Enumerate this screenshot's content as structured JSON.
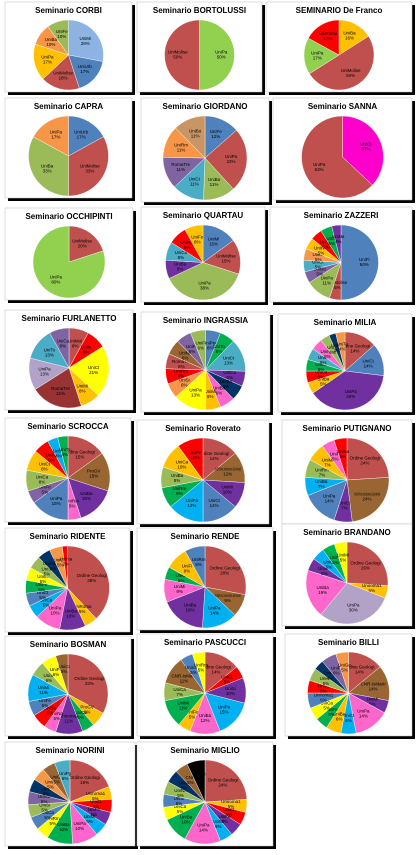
{
  "chart_data": [
    {
      "type": "pie",
      "title": "Seminario CORBI",
      "categories": [
        "UniMi",
        "UniUrb",
        "UniMolise",
        "UniPa",
        "UniBa",
        "UniFe"
      ],
      "values": [
        28,
        17,
        18,
        17,
        10,
        10
      ],
      "value_labels": [
        "28%",
        "17%",
        "18%",
        "17%",
        "10%",
        "10%"
      ],
      "colors": [
        "#8db3e2",
        "#4f81bd",
        "#c0504d",
        "#ffc000",
        "#f79646",
        "#9bbb59"
      ]
    },
    {
      "type": "pie",
      "title": "Seminario BORTOLUSSI",
      "categories": [
        "UniPa",
        "UniMolise"
      ],
      "values": [
        50,
        50
      ],
      "value_labels": [
        "50%",
        "50%"
      ],
      "colors": [
        "#92d050",
        "#c0504d"
      ]
    },
    {
      "type": "pie",
      "title": "SEMINARIO De Franco",
      "categories": [
        "UniBa",
        "UniMolise",
        "UniPa",
        "UniRoma"
      ],
      "values": [
        16,
        50,
        17,
        17
      ],
      "value_labels": [
        "16%",
        "50%",
        "17%",
        "17%"
      ],
      "colors": [
        "#ffc000",
        "#c0504d",
        "#92d050",
        "#ff0000"
      ]
    },
    {
      "type": "pie",
      "title": "Seminario CAPRA",
      "categories": [
        "UniUrb",
        "UniMolise",
        "UniBa",
        "UniPa"
      ],
      "values": [
        17,
        33,
        33,
        17
      ],
      "value_labels": [
        "17%",
        "33%",
        "33%",
        "17%"
      ],
      "colors": [
        "#4f81bd",
        "#c0504d",
        "#9bbb59",
        "#f79646"
      ]
    },
    {
      "type": "pie",
      "title": "Seminario GIORDANO",
      "categories": [
        "UniFe",
        "UniPa",
        "UniBa",
        "UniCt",
        "RomaTre",
        "UniRm",
        "UniBo"
      ],
      "values": [
        12,
        22,
        11,
        11,
        11,
        11,
        11
      ],
      "value_labels": [
        "12%",
        "22%",
        "11%",
        "11%",
        "11%",
        "11%",
        "11%"
      ],
      "colors": [
        "#4f81bd",
        "#c0504d",
        "#9bbb59",
        "#4bacc6",
        "#8064a2",
        "#f79646",
        "#c89664"
      ]
    },
    {
      "type": "pie",
      "title": "Seminario SANNA",
      "categories": [
        "UniCt",
        "UniPa"
      ],
      "values": [
        37,
        63
      ],
      "value_labels": [
        "37%",
        "63%"
      ],
      "colors": [
        "#ff00cc",
        "#c0504d"
      ]
    },
    {
      "type": "pie",
      "title": "Seminario OCCHIPINTI",
      "categories": [
        "UniMolise",
        "UniPa"
      ],
      "values": [
        20,
        80
      ],
      "value_labels": [
        "20%",
        "80%"
      ],
      "colors": [
        "#c0504d",
        "#92d050"
      ]
    },
    {
      "type": "pie",
      "title": "Seminario QUARTAU",
      "categories": [
        "UniMi",
        "UniMolise",
        "UniPa",
        "UniBa",
        "UniCa",
        "UniRm",
        "UniFe"
      ],
      "values": [
        15,
        15,
        38,
        8,
        8,
        8,
        8
      ],
      "value_labels": [
        "15%",
        "15%",
        "38%",
        "8%",
        "8%",
        "8%",
        "8%"
      ],
      "colors": [
        "#4f81bd",
        "#c0504d",
        "#9bbb59",
        "#7030a0",
        "#4bacc6",
        "#ff0000",
        "#ffc000"
      ]
    },
    {
      "type": "pie",
      "title": "Seminario ZAZZERI",
      "categories": [
        "UniFi",
        "UniMolise",
        "UniPa",
        "UniBo",
        "UniCt",
        "UniMi",
        "UniRm",
        "UniTo",
        "UniSi",
        "UniNa"
      ],
      "values": [
        50,
        5,
        11,
        5,
        5,
        5,
        5,
        5,
        5,
        4
      ],
      "value_labels": [
        "50%",
        "5%",
        "11%",
        "5%",
        "5%",
        "5%",
        "5%",
        "5%",
        "5%",
        "4%"
      ],
      "colors": [
        "#4f81bd",
        "#c0504d",
        "#9bbb59",
        "#8064a2",
        "#4bacc6",
        "#f79646",
        "#ffc000",
        "#ff0000",
        "#00b050",
        "#7030a0"
      ]
    },
    {
      "type": "pie",
      "title": "Seminario FURLANETTO",
      "categories": [
        "UniMol",
        "UniIs",
        "UniCt",
        "UniMi",
        "RomaTre",
        "UniPa",
        "UniTo",
        "UniCa"
      ],
      "values": [
        8,
        8,
        21,
        8,
        21,
        13,
        13,
        8
      ],
      "value_labels": [
        "8%",
        "8%",
        "21%",
        "8%",
        "21%",
        "13%",
        "13%",
        "8%"
      ],
      "colors": [
        "#c0504d",
        "#ff0000",
        "#ffff00",
        "#ffc000",
        "#993333",
        "#b3a2c7",
        "#4bacc6",
        "#8064a2"
      ]
    },
    {
      "type": "pie",
      "title": "Seminario INGRASSIA",
      "categories": [
        "UniPec",
        "UniTo",
        "UniCt",
        "UniCa",
        "UniBa",
        "UniBo",
        "UniMi",
        "UniPa",
        "UniSi",
        "UniRm",
        "RomaTre",
        "UniNa",
        "UniFe",
        "UniFi"
      ],
      "values": [
        6,
        6,
        13,
        6,
        6,
        6,
        6,
        13,
        6,
        6,
        6,
        6,
        6,
        6
      ],
      "value_labels": [
        "6%",
        "6%",
        "13%",
        "6%",
        "6%",
        "6%",
        "6%",
        "13%",
        "6%",
        "6%",
        "6%",
        "6%",
        "6%",
        "6%"
      ],
      "colors": [
        "#4f81bd",
        "#00b050",
        "#4bacc6",
        "#7030a0",
        "#003366",
        "#ff66cc",
        "#ffc000",
        "#ffff00",
        "#f79646",
        "#ff0000",
        "#c0504d",
        "#996633",
        "#8064a2",
        "#9bbb59"
      ]
    },
    {
      "type": "pie",
      "title": "Seminario MILIA",
      "categories": [
        "Ordine Geologi",
        "UniCt",
        "UniPa",
        "UniBa",
        "UniCa",
        "UniMi",
        "UniSi",
        "UniRm",
        "UniFi",
        "UniNa",
        "UniTo"
      ],
      "values": [
        14,
        14,
        40,
        5,
        5,
        5,
        5,
        5,
        4,
        3,
        4
      ],
      "value_labels": [
        "14%",
        "14%",
        "40%",
        "5%",
        "5%",
        "5%",
        "5%",
        "5%",
        "4%",
        "3%",
        "4%"
      ],
      "colors": [
        "#c0504d",
        "#4f81bd",
        "#7030a0",
        "#ffc000",
        "#ff0000",
        "#00b050",
        "#4bacc6",
        "#ff66cc",
        "#9bbb59",
        "#003366",
        "#f79646"
      ]
    },
    {
      "type": "pie",
      "title": "Seminario SCROCCA",
      "categories": [
        "Ordine Geologi",
        "ProGV",
        "UniBa",
        "UniRm",
        "UniPa",
        "UniFe",
        "UniCa",
        "UniCt",
        "UniMi",
        "UniTs",
        "UniTo"
      ],
      "values": [
        15,
        15,
        15,
        5,
        15,
        5,
        8,
        8,
        6,
        4,
        4
      ],
      "value_labels": [
        "15%",
        "15%",
        "15%",
        "5%",
        "15%",
        "5%",
        "8%",
        "8%",
        "6%",
        "4%",
        "4%"
      ],
      "colors": [
        "#c0504d",
        "#996633",
        "#7030a0",
        "#ff66cc",
        "#4f81bd",
        "#8064a2",
        "#9bbb59",
        "#ffc000",
        "#ff0000",
        "#00b0f0",
        "#00b050"
      ]
    },
    {
      "type": "pie",
      "title": "Seminario Roverato",
      "categories": [
        "Ordine Geologi",
        "Altro (Enti Ricerca, Università straniere, Guide Ambientali)",
        "UniMi",
        "UniCt",
        "UniPa",
        "UniRm",
        "UniBa",
        "UniCa",
        "UniFe"
      ],
      "values": [
        14,
        12,
        10,
        14,
        14,
        8,
        8,
        10,
        10
      ],
      "value_labels": [
        "14%",
        "12%",
        "10%",
        "14%",
        "14%",
        "8%",
        "8%",
        "10%",
        "10%"
      ],
      "colors": [
        "#c0504d",
        "#996633",
        "#7030a0",
        "#4f81bd",
        "#00b0f0",
        "#00b050",
        "#9bbb59",
        "#ffc000",
        "#ff0000"
      ]
    },
    {
      "type": "pie",
      "title": "Seminario PUTIGNANO",
      "categories": [
        "Ordine Geologi",
        "Altro (Enti Ricerca, Università straniere, Guide Ambientali)",
        "UniCt",
        "UniPa",
        "UniBa",
        "UniRm",
        "UniMi",
        "UniFi",
        "UniNa"
      ],
      "values": [
        24,
        24,
        7,
        14,
        7,
        7,
        7,
        5,
        5
      ],
      "value_labels": [
        "24%",
        "24%",
        "7%",
        "14%",
        "7%",
        "7%",
        "7%",
        "5%",
        "5%"
      ],
      "colors": [
        "#c0504d",
        "#996633",
        "#7030a0",
        "#4f81bd",
        "#00b0f0",
        "#9bbb59",
        "#ffc000",
        "#ff66cc",
        "#ff0000"
      ]
    },
    {
      "type": "pie",
      "title": "Seminario RIDENTE",
      "categories": [
        "Ordine Geologi",
        "UniRoma",
        "UniBa",
        "UniPa",
        "UniCa",
        "UniCt",
        "UniFe",
        "UniMi",
        "UniSi",
        "Uniroma1",
        "UniCal",
        "UniNa"
      ],
      "values": [
        38,
        5,
        10,
        10,
        5,
        5,
        5,
        5,
        5,
        5,
        5,
        2
      ],
      "value_labels": [
        "38%",
        "5%",
        "10%",
        "10%",
        "5%",
        "5%",
        "5%",
        "5%",
        "5%",
        "5%",
        "5%",
        "2%"
      ],
      "colors": [
        "#c0504d",
        "#ffc000",
        "#7030a0",
        "#ff66cc",
        "#00b0f0",
        "#4f81bd",
        "#00b050",
        "#ffff00",
        "#9bbb59",
        "#003366",
        "#f79646",
        "#ff0000"
      ]
    },
    {
      "type": "pie",
      "title": "Seminario RENDE",
      "categories": [
        "Ordine Geologi",
        "Altro (Enti Ricerca, Università straniere, Guide Ambientali)",
        "UniPa",
        "UniBa",
        "UniMi",
        "UniCt",
        "UniFi",
        "UniRm"
      ],
      "values": [
        28,
        9,
        14,
        18,
        9,
        5,
        9,
        8
      ],
      "value_labels": [
        "28%",
        "9%",
        "14%",
        "18%",
        "9%",
        "5%",
        "9%",
        "8%"
      ],
      "colors": [
        "#c0504d",
        "#996633",
        "#00b0f0",
        "#7030a0",
        "#ff66cc",
        "#00b050",
        "#ffc000",
        "#4f81bd"
      ]
    },
    {
      "type": "pie",
      "title": "Seminario BRANDANO",
      "categories": [
        "Ordine Geologi",
        "Uniroma1",
        "UniPa",
        "UniBa",
        "UniCa",
        "UniCt",
        "UniFe",
        "UniMi"
      ],
      "values": [
        26,
        5,
        30,
        19,
        5,
        5,
        5,
        5
      ],
      "value_labels": [
        "26%",
        "5%",
        "30%",
        "19%",
        "5%",
        "5%",
        "5%",
        "5%"
      ],
      "colors": [
        "#c0504d",
        "#ffc000",
        "#b3a2c7",
        "#ff66cc",
        "#7030a0",
        "#00b0f0",
        "#00b050",
        "#ffff00"
      ]
    },
    {
      "type": "pie",
      "title": "Seminario BOSMAN",
      "categories": [
        "Ordine Geologi",
        "ProGV",
        "UniCa",
        "Uniroma1",
        "UniNa",
        "UniBa",
        "UniFe",
        "UniMi",
        "UniSi",
        "UniPa",
        "UniCt"
      ],
      "values": [
        33,
        6,
        5,
        11,
        5,
        6,
        6,
        11,
        6,
        6,
        5
      ],
      "value_labels": [
        "33%",
        "6%",
        "5%",
        "11%",
        "5%",
        "6%",
        "6%",
        "11%",
        "6%",
        "6%",
        "5%"
      ],
      "colors": [
        "#c0504d",
        "#ffc000",
        "#00b050",
        "#7030a0",
        "#ff66cc",
        "#ff0000",
        "#4f81bd",
        "#00b0f0",
        "#9bbb59",
        "#ffff00",
        "#996633"
      ]
    },
    {
      "type": "pie",
      "title": "Seminario PASCUCCI",
      "categories": [
        "Ordine Geologi",
        "UniCt",
        "UniSi",
        "UniPa",
        "UniBa",
        "UniFe",
        "UniMi",
        "UniCa",
        "CNR-IsMarII",
        "Uniroma",
        "UniRm"
      ],
      "values": [
        14,
        5,
        10,
        15,
        12,
        5,
        11,
        7,
        11,
        5,
        5
      ],
      "value_labels": [
        "14%",
        "5%",
        "10%",
        "15%",
        "12%",
        "5%",
        "11%",
        "7%",
        "11%",
        "5%",
        "5%"
      ],
      "colors": [
        "#c0504d",
        "#ff0000",
        "#7030a0",
        "#00b0f0",
        "#ff66cc",
        "#ffc000",
        "#00b050",
        "#9bbb59",
        "#996633",
        "#4f81bd",
        "#ffff00"
      ]
    },
    {
      "type": "pie",
      "title": "Seminario BILLI",
      "categories": [
        "Ordine Geologi",
        "CNR-IsMarII",
        "UniMi",
        "UniPa",
        "UniCt",
        "UniBa",
        "UniFe",
        "UniCa",
        "Uniroma1",
        "UniSi",
        "UniNa",
        "UniTo",
        "UniFi",
        "UniGe"
      ],
      "values": [
        14,
        14,
        5,
        14,
        6,
        6,
        5,
        5,
        6,
        5,
        5,
        4,
        6,
        5
      ],
      "value_labels": [
        "14%",
        "14%",
        "5%",
        "14%",
        "6%",
        "6%",
        "5%",
        "5%",
        "6%",
        "5%",
        "5%",
        "4%",
        "6%",
        "5%"
      ],
      "colors": [
        "#c0504d",
        "#996633",
        "#7030a0",
        "#ff66cc",
        "#00b0f0",
        "#ffc000",
        "#00b050",
        "#ffff00",
        "#4f81bd",
        "#ff0000",
        "#9bbb59",
        "#003366",
        "#8064a2",
        "#f79646"
      ]
    },
    {
      "type": "pie",
      "title": "Seminario NORINI",
      "categories": [
        "Ordine Geologi",
        "Uniroma1",
        "UniCt",
        "UniFe",
        "UniMi",
        "UniPa",
        "UniBa",
        "UniRm",
        "UniCa",
        "UniSi",
        "UniNa",
        "UniTo",
        "UniFi",
        "UniGe",
        "UniPg"
      ],
      "values": [
        19,
        5,
        5,
        5,
        5,
        10,
        10,
        5,
        5,
        5,
        5,
        5,
        5,
        5,
        6
      ],
      "value_labels": [
        "19%",
        "5%",
        "5%",
        "5%",
        "5%",
        "10%",
        "10%",
        "5%",
        "5%",
        "5%",
        "5%",
        "5%",
        "5%",
        "5%",
        "6%"
      ],
      "colors": [
        "#c0504d",
        "#ffc000",
        "#ff0000",
        "#7030a0",
        "#00b0f0",
        "#ff66cc",
        "#00b050",
        "#ffff00",
        "#4f81bd",
        "#9bbb59",
        "#8064a2",
        "#003366",
        "#f79646",
        "#996633",
        "#4bacc6"
      ]
    },
    {
      "type": "pie",
      "title": "Seminario MIGLIO",
      "categories": [
        "Ordine Geologi",
        "Uniroma1",
        "UniCt",
        "UniFe",
        "UniMi",
        "UniPa",
        "UniBa",
        "UniCa",
        "UniSi",
        "UniNa",
        "UniTo",
        "CNR",
        "UniGe"
      ],
      "values": [
        24,
        5,
        5,
        5,
        5,
        14,
        10,
        5,
        5,
        5,
        5,
        5,
        7
      ],
      "value_labels": [
        "24%",
        "5%",
        "5%",
        "5%",
        "5%",
        "14%",
        "10%",
        "5%",
        "5%",
        "5%",
        "5%",
        "5%",
        "7%"
      ],
      "colors": [
        "#c0504d",
        "#ffc000",
        "#ff0000",
        "#7030a0",
        "#00b0f0",
        "#ff66cc",
        "#00b050",
        "#ffff00",
        "#4f81bd",
        "#9bbb59",
        "#003366",
        "#996633",
        "#000000"
      ]
    }
  ]
}
